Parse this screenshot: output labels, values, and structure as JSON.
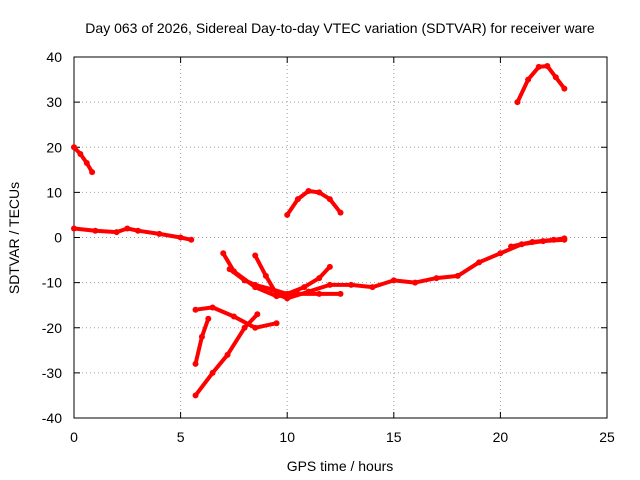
{
  "chart_data": {
    "type": "line",
    "title": "Day 063 of 2026, Sidereal Day-to-day VTEC variation (SDTVAR) for receiver ware",
    "xlabel": "GPS time / hours",
    "ylabel": "SDTVAR / TECUs",
    "xlim": [
      0,
      25
    ],
    "ylim": [
      -40,
      40
    ],
    "xticks": [
      0,
      5,
      10,
      15,
      20,
      25
    ],
    "yticks": [
      -40,
      -30,
      -20,
      -10,
      0,
      10,
      20,
      30,
      40
    ],
    "grid": true,
    "color": "#ff0000",
    "series": [
      {
        "name": "arc-1",
        "x": [
          0,
          0.3,
          0.6,
          0.85
        ],
        "y": [
          20,
          18.5,
          16.5,
          14.5
        ]
      },
      {
        "name": "arc-2",
        "x": [
          0,
          1,
          2,
          2.5,
          3,
          4,
          5,
          5.5
        ],
        "y": [
          2,
          1.5,
          1.2,
          2,
          1.5,
          0.8,
          0,
          -0.5
        ]
      },
      {
        "name": "arc-3",
        "x": [
          10,
          10.5,
          11,
          11.5,
          12,
          12.5
        ],
        "y": [
          5,
          8.5,
          10.3,
          10,
          8.5,
          5.5
        ]
      },
      {
        "name": "arc-4",
        "x": [
          20.8,
          21.3,
          21.8,
          22.2,
          22.6,
          23
        ],
        "y": [
          30,
          35,
          37.8,
          38,
          35.5,
          33
        ]
      },
      {
        "name": "arc-5",
        "x": [
          5.7,
          6,
          6.3
        ],
        "y": [
          -28,
          -22,
          -18
        ]
      },
      {
        "name": "arc-6",
        "x": [
          5.7,
          6.5,
          7.2,
          8,
          8.6
        ],
        "y": [
          -35,
          -30,
          -26,
          -20,
          -17
        ]
      },
      {
        "name": "arc-7",
        "x": [
          5.7,
          6.5,
          7.5,
          8.5,
          9.5
        ],
        "y": [
          -16,
          -15.5,
          -17.5,
          -20,
          -19
        ]
      },
      {
        "name": "arc-8",
        "x": [
          7,
          7.5,
          8.5,
          9.5,
          10.5,
          11.5,
          12.5
        ],
        "y": [
          -3.5,
          -7.5,
          -11,
          -13,
          -12.5,
          -12.5,
          -12.5
        ]
      },
      {
        "name": "arc-9",
        "x": [
          7.3,
          8,
          8.5,
          9.3,
          10,
          10.8,
          11.5,
          12
        ],
        "y": [
          -7,
          -9.5,
          -10.5,
          -11.5,
          -12.5,
          -11,
          -9,
          -6.5
        ]
      },
      {
        "name": "arc-10",
        "x": [
          8.5,
          9,
          9.5,
          10,
          11,
          12,
          13,
          14,
          15,
          16,
          17,
          18,
          19,
          20,
          21,
          22,
          23
        ],
        "y": [
          -4,
          -8.5,
          -12.5,
          -13.5,
          -12,
          -10.5,
          -10.5,
          -11,
          -9.5,
          -10,
          -9,
          -8.5,
          -5.5,
          -3.5,
          -1.5,
          -0.8,
          -0.5
        ]
      },
      {
        "name": "arc-11",
        "x": [
          20.5,
          21.5,
          22.5,
          23
        ],
        "y": [
          -2,
          -1,
          -0.5,
          -0.2
        ]
      }
    ]
  }
}
